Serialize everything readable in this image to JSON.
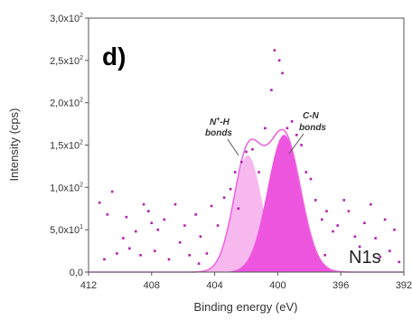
{
  "chart_data": {
    "type": "scatter",
    "panel_label": "d)",
    "xlabel": "Binding energy (eV)",
    "ylabel": "Intensity (cps)",
    "xlim": [
      412,
      392
    ],
    "ylim": [
      0,
      300
    ],
    "x_reversed": true,
    "x_ticks": [
      "412",
      "408",
      "404",
      "400",
      "396",
      "392"
    ],
    "y_ticks": [
      {
        "value": 0,
        "mantissa": "0,0",
        "exponent": ""
      },
      {
        "value": 50,
        "mantissa": "5,0x10",
        "exponent": "1"
      },
      {
        "value": 100,
        "mantissa": "1,0x10",
        "exponent": "2"
      },
      {
        "value": 150,
        "mantissa": "1,5x10",
        "exponent": "2"
      },
      {
        "value": 200,
        "mantissa": "2,0x10",
        "exponent": "2"
      },
      {
        "value": 250,
        "mantissa": "2,5x10",
        "exponent": "2"
      },
      {
        "value": 300,
        "mantissa": "3,0x10",
        "exponent": "2"
      }
    ],
    "peaks": [
      {
        "center": 401.9,
        "amplitude": 138,
        "sigma": 0.9,
        "color": "#f7b8ee"
      },
      {
        "center": 399.6,
        "amplitude": 162,
        "sigma": 1.05,
        "color": "#ee55df"
      }
    ],
    "envelope_color": "#ee66e0",
    "scatter_color": "#b01fb0",
    "scatter_points": [
      {
        "x": 411.3,
        "y": 82
      },
      {
        "x": 410.8,
        "y": 68
      },
      {
        "x": 410.5,
        "y": 95
      },
      {
        "x": 410.2,
        "y": 22
      },
      {
        "x": 409.8,
        "y": 40
      },
      {
        "x": 409.6,
        "y": 65
      },
      {
        "x": 409.4,
        "y": 28
      },
      {
        "x": 409.0,
        "y": 48
      },
      {
        "x": 408.7,
        "y": 20
      },
      {
        "x": 408.5,
        "y": 80
      },
      {
        "x": 408.2,
        "y": 72
      },
      {
        "x": 407.8,
        "y": 25
      },
      {
        "x": 407.6,
        "y": 50
      },
      {
        "x": 407.2,
        "y": 62
      },
      {
        "x": 406.9,
        "y": 15
      },
      {
        "x": 406.5,
        "y": 80
      },
      {
        "x": 406.2,
        "y": 35
      },
      {
        "x": 405.9,
        "y": 55
      },
      {
        "x": 405.6,
        "y": 20
      },
      {
        "x": 405.2,
        "y": 68
      },
      {
        "x": 404.9,
        "y": 42
      },
      {
        "x": 404.5,
        "y": 22
      },
      {
        "x": 404.2,
        "y": 78
      },
      {
        "x": 403.8,
        "y": 55
      },
      {
        "x": 403.4,
        "y": 88
      },
      {
        "x": 403.0,
        "y": 98
      },
      {
        "x": 402.7,
        "y": 118
      },
      {
        "x": 402.3,
        "y": 130
      },
      {
        "x": 402.0,
        "y": 142
      },
      {
        "x": 401.6,
        "y": 145
      },
      {
        "x": 401.2,
        "y": 118
      },
      {
        "x": 400.8,
        "y": 170
      },
      {
        "x": 400.4,
        "y": 215
      },
      {
        "x": 400.2,
        "y": 262
      },
      {
        "x": 399.9,
        "y": 250
      },
      {
        "x": 399.7,
        "y": 235
      },
      {
        "x": 399.4,
        "y": 170
      },
      {
        "x": 399.1,
        "y": 178
      },
      {
        "x": 398.8,
        "y": 162
      },
      {
        "x": 398.5,
        "y": 150
      },
      {
        "x": 398.2,
        "y": 118
      },
      {
        "x": 397.9,
        "y": 110
      },
      {
        "x": 397.6,
        "y": 85
      },
      {
        "x": 397.2,
        "y": 62
      },
      {
        "x": 396.9,
        "y": 72
      },
      {
        "x": 396.5,
        "y": 48
      },
      {
        "x": 396.2,
        "y": 55
      },
      {
        "x": 395.8,
        "y": 85
      },
      {
        "x": 395.5,
        "y": 72
      },
      {
        "x": 395.1,
        "y": 42
      },
      {
        "x": 394.8,
        "y": 30
      },
      {
        "x": 394.5,
        "y": 58
      },
      {
        "x": 394.1,
        "y": 80
      },
      {
        "x": 393.8,
        "y": 40
      },
      {
        "x": 393.5,
        "y": 18
      },
      {
        "x": 393.2,
        "y": 62
      },
      {
        "x": 392.9,
        "y": 25
      },
      {
        "x": 392.6,
        "y": 50
      },
      {
        "x": 392.3,
        "y": 12
      },
      {
        "x": 411.0,
        "y": 15
      },
      {
        "x": 408.0,
        "y": 58
      },
      {
        "x": 405.0,
        "y": 10
      },
      {
        "x": 402.5,
        "y": 75
      },
      {
        "x": 397.0,
        "y": 20
      }
    ],
    "annotations": {
      "nh": {
        "line1": "N+-H",
        "line2": "bonds"
      },
      "cn": {
        "line1": "C-N",
        "line2": "bonds"
      },
      "spectrum": "N1s"
    }
  }
}
